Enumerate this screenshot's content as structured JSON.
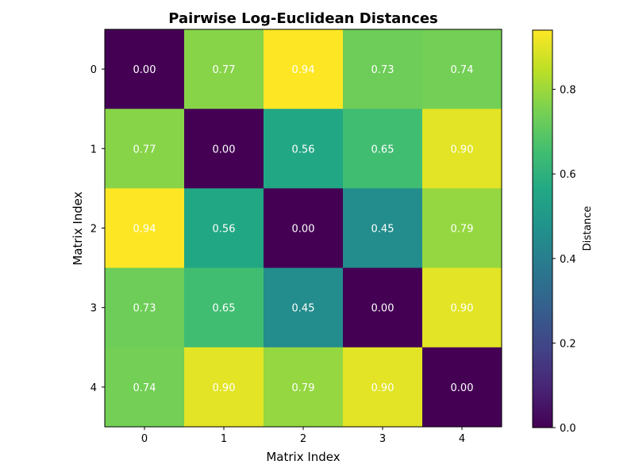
{
  "chart_data": {
    "type": "heatmap",
    "title": "Pairwise Log-Euclidean Distances",
    "xlabel": "Matrix Index",
    "ylabel": "Matrix Index",
    "x_categories": [
      "0",
      "1",
      "2",
      "3",
      "4"
    ],
    "y_categories": [
      "0",
      "1",
      "2",
      "3",
      "4"
    ],
    "values": [
      [
        0.0,
        0.77,
        0.94,
        0.73,
        0.74
      ],
      [
        0.77,
        0.0,
        0.56,
        0.65,
        0.9
      ],
      [
        0.94,
        0.56,
        0.0,
        0.45,
        0.79
      ],
      [
        0.73,
        0.65,
        0.45,
        0.0,
        0.9
      ],
      [
        0.74,
        0.9,
        0.79,
        0.9,
        0.0
      ]
    ],
    "colormap": "viridis",
    "colorbar": {
      "label": "Distance",
      "range": [
        0.0,
        0.94
      ],
      "ticks": [
        "0.0",
        "0.2",
        "0.4",
        "0.6",
        "0.8"
      ]
    },
    "legend_position": "right"
  }
}
